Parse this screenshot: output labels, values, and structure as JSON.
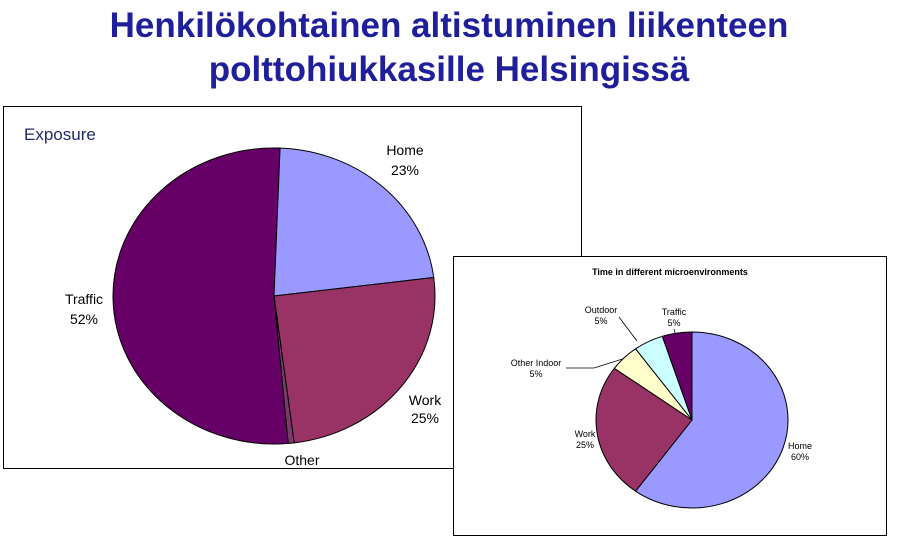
{
  "slide": {
    "title_line1": "Henkilökohtainen altistuminen liikenteen",
    "title_line2": "polttohiukkasille Helsingissä"
  },
  "chart_data": [
    {
      "type": "pie",
      "title": "Exposure",
      "start_angle_deg": 0,
      "slices": [
        {
          "name": "Home",
          "value": 23,
          "label": "23%",
          "color": "#9999ff"
        },
        {
          "name": "Work",
          "value": 25,
          "label": "25%",
          "color": "#993366"
        },
        {
          "name": "Other",
          "value": 0,
          "label": "",
          "color": "#7a3a6a"
        },
        {
          "name": "Traffic",
          "value": 52,
          "label": "52%",
          "color": "#660066"
        }
      ],
      "legend": "none"
    },
    {
      "type": "pie",
      "title": "Time in different microenvironments",
      "start_angle_deg": 0,
      "slices": [
        {
          "name": "Home",
          "value": 60,
          "label": "60%",
          "color": "#9999ff"
        },
        {
          "name": "Work",
          "value": 25,
          "label": "25%",
          "color": "#993366"
        },
        {
          "name": "Other Indoor",
          "value": 5,
          "label": "5%",
          "color": "#ffffcc"
        },
        {
          "name": "Outdoor",
          "value": 5,
          "label": "5%",
          "color": "#ccffff"
        },
        {
          "name": "Traffic",
          "value": 5,
          "label": "5%",
          "color": "#660066"
        }
      ],
      "legend": "none"
    }
  ]
}
